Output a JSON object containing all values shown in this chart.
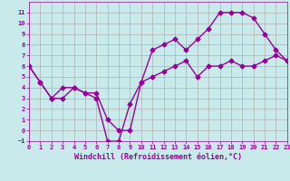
{
  "xlabel": "Windchill (Refroidissement éolien,°C)",
  "xlim": [
    0,
    23
  ],
  "ylim": [
    -1,
    12
  ],
  "xticks": [
    0,
    1,
    2,
    3,
    4,
    5,
    6,
    7,
    8,
    9,
    10,
    11,
    12,
    13,
    14,
    15,
    16,
    17,
    18,
    19,
    20,
    21,
    22,
    23
  ],
  "yticks": [
    -1,
    0,
    1,
    2,
    3,
    4,
    5,
    6,
    7,
    8,
    9,
    10,
    11
  ],
  "bg_color": "#c8eaea",
  "grid_color": "#b0b0b0",
  "line_color": "#990099",
  "line1_x": [
    0,
    1,
    2,
    3,
    4,
    5,
    6,
    7,
    8,
    9,
    10,
    11,
    12,
    13,
    14,
    15,
    16,
    17,
    18,
    19,
    20,
    21,
    22,
    23
  ],
  "line1_y": [
    6.0,
    4.5,
    3.0,
    4.0,
    4.0,
    3.5,
    3.0,
    -1.0,
    -1.0,
    2.5,
    4.5,
    7.5,
    8.0,
    8.5,
    7.5,
    8.5,
    9.5,
    11.0,
    11.0,
    11.0,
    10.5,
    9.0,
    7.5,
    6.5
  ],
  "line2_x": [
    0,
    1,
    2,
    3,
    4,
    5,
    6,
    7,
    8,
    9,
    10,
    11,
    12,
    13,
    14,
    15,
    16,
    17,
    18,
    19,
    20,
    21,
    22,
    23
  ],
  "line2_y": [
    6.0,
    4.5,
    3.0,
    3.0,
    4.0,
    3.5,
    3.5,
    1.0,
    0.0,
    0.0,
    4.5,
    5.0,
    5.5,
    6.0,
    6.5,
    5.0,
    6.0,
    6.0,
    6.5,
    6.0,
    6.0,
    6.5,
    7.0,
    6.5
  ],
  "marker": "D",
  "marker_size": 2.5,
  "linewidth": 1.0,
  "tick_fontsize": 5.0,
  "label_fontsize": 6.0
}
